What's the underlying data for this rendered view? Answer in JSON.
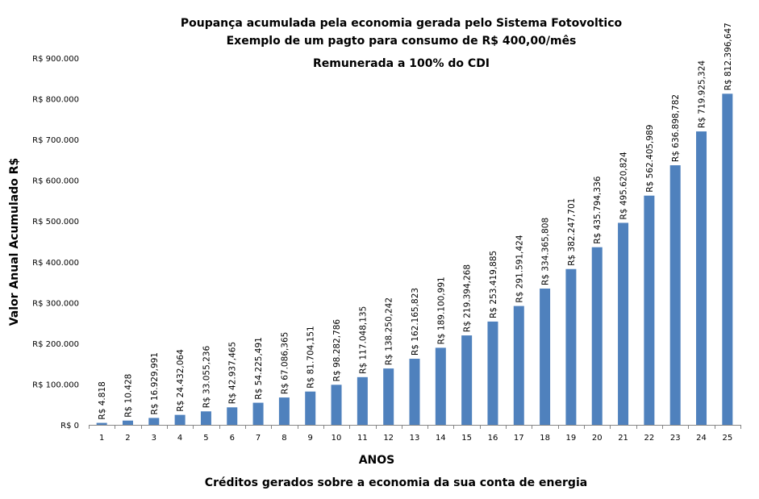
{
  "chart_data": {
    "type": "bar",
    "title": [
      "Poupança acumulada  pela economia gerada pelo Sistema Fotovoltico",
      "Exemplo de um pagto para consumo de R$ 400,00/mês",
      "Remunerada a 100% do CDI"
    ],
    "xlabel": "ANOS",
    "ylabel": "Valor  Anual Acumulado R$",
    "footer": "Créditos gerados sobre a economia da sua conta de energia",
    "categories": [
      "1",
      "2",
      "3",
      "4",
      "5",
      "6",
      "7",
      "8",
      "9",
      "10",
      "11",
      "12",
      "13",
      "14",
      "15",
      "16",
      "17",
      "18",
      "19",
      "20",
      "21",
      "22",
      "23",
      "24",
      "25"
    ],
    "values": [
      4818,
      10428,
      16929.991,
      24432.064,
      33055.236,
      42937.465,
      54225.491,
      67086.365,
      81704.151,
      98282.786,
      117048.135,
      138250.242,
      162165.823,
      189100.991,
      219394.268,
      253419.885,
      291591.424,
      334365.808,
      382247.701,
      435794.336,
      495620.824,
      562405.989,
      636898.782,
      719925.324,
      812396.647
    ],
    "data_labels": [
      "R$ 4.818",
      "R$ 10.428",
      "R$ 16.929,991",
      "R$ 24.432,064",
      "R$ 33.055,236",
      "R$ 42.937,465",
      "R$ 54.225,491",
      "R$ 67.086,365",
      "R$ 81.704,151",
      "R$ 98.282,786",
      "R$ 117.048,135",
      "R$ 138.250,242",
      "R$ 162.165,823",
      "R$ 189.100,991",
      "R$ 219.394,268",
      "R$ 253.419,885",
      "R$ 291.591,424",
      "R$ 334.365,808",
      "R$ 382.247,701",
      "R$ 435.794,336",
      "R$ 495.620,824",
      "R$ 562.405,989",
      "R$ 636.898,782",
      "R$ 719.925,324",
      "R$ 812.396,647"
    ],
    "yticks": [
      0,
      100000,
      200000,
      300000,
      400000,
      500000,
      600000,
      700000,
      800000,
      900000
    ],
    "ytick_labels": [
      "R$ 0",
      "R$ 100.000",
      "R$ 200.000",
      "R$ 300.000",
      "R$ 400.000",
      "R$ 500.000",
      "R$ 600.000",
      "R$ 700.000",
      "R$ 800.000",
      "R$ 900.000"
    ],
    "ylim": [
      0,
      900000
    ],
    "grid": false,
    "bar_color": "#4F81BD"
  }
}
